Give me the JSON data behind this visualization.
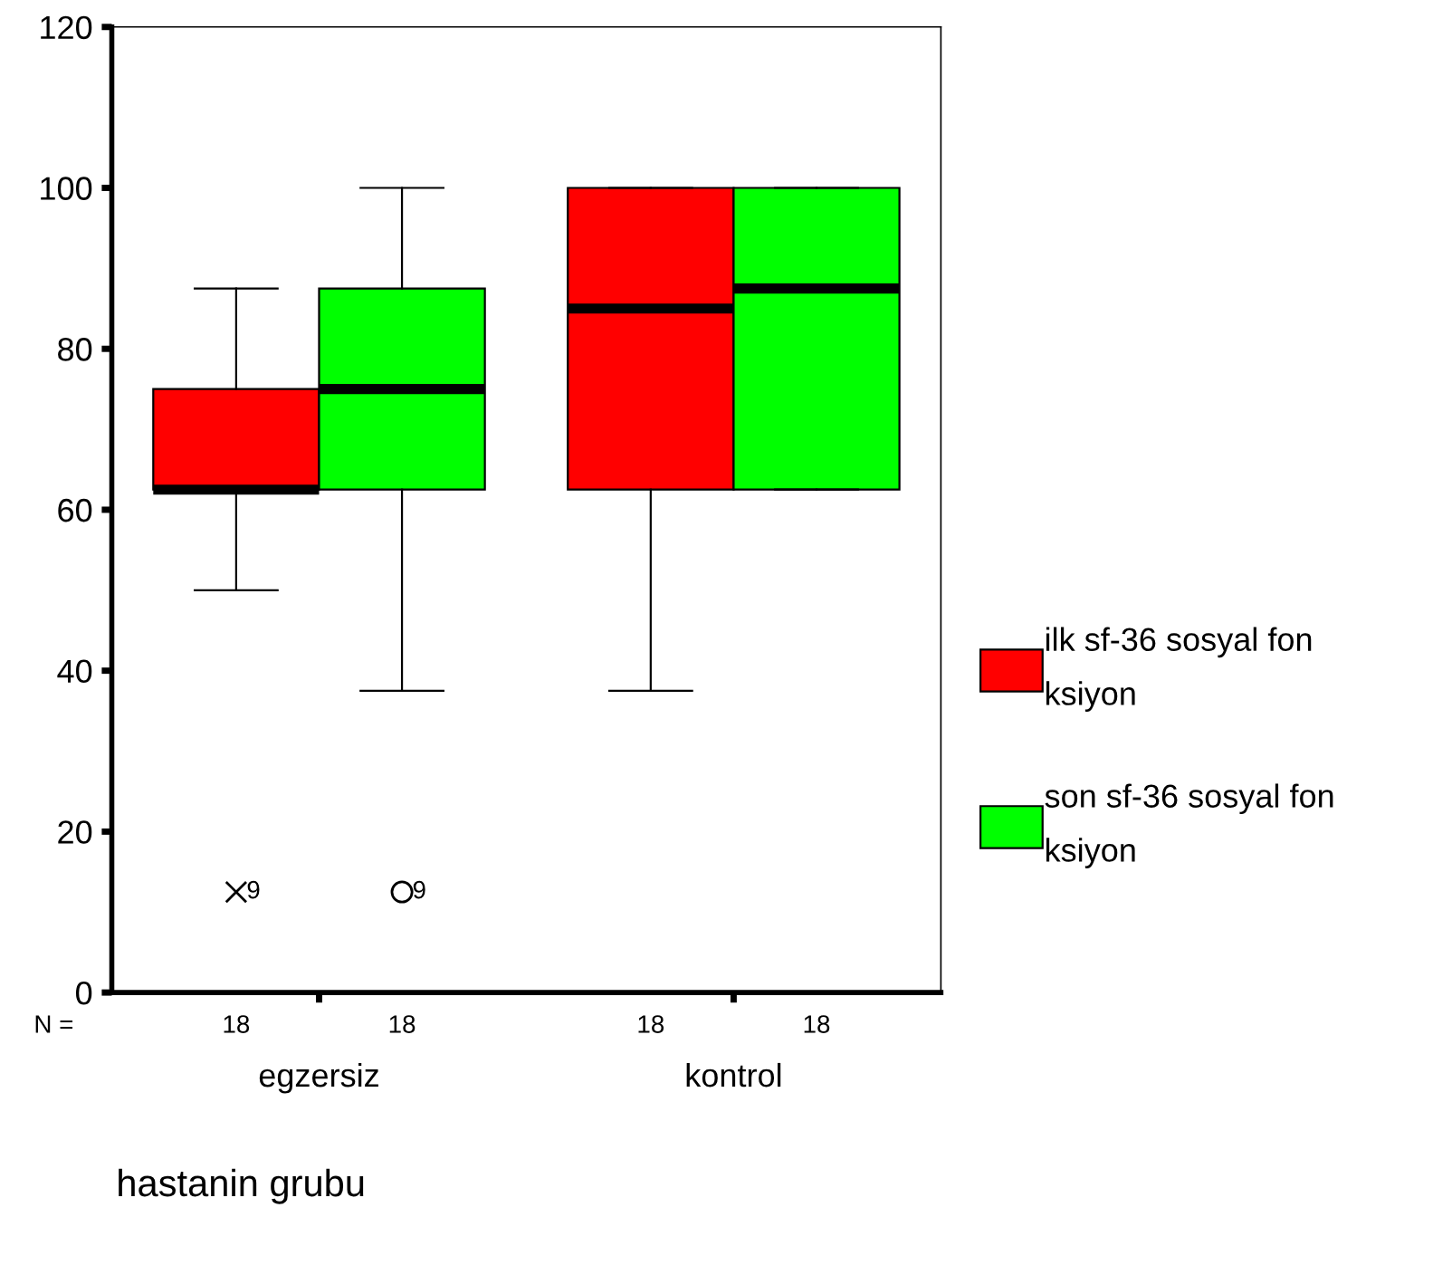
{
  "chart_data": {
    "type": "box",
    "xlabel": "hastanin grubu",
    "categories": [
      "egzersiz",
      "kontrol"
    ],
    "ylim": [
      0,
      120
    ],
    "yticks": [
      0,
      20,
      40,
      60,
      80,
      100,
      120
    ],
    "grid": false,
    "legend": "right",
    "series": [
      {
        "name": "ilk sf-36 sosyal fon\nksiyon",
        "color": "#ff0000",
        "marker": "cross",
        "boxes": [
          {
            "low": 50,
            "q1": 62.5,
            "median": 62.5,
            "q3": 75,
            "high": 87.5,
            "outliers": [
              12.5
            ]
          },
          {
            "low": 37.5,
            "q1": 62.5,
            "median": 85,
            "q3": 100,
            "high": 100
          }
        ]
      },
      {
        "name": "son sf-36 sosyal fon\nksiyon",
        "color": "#00ff00",
        "marker": "circle",
        "boxes": [
          {
            "low": 37.5,
            "q1": 62.5,
            "median": 75,
            "q3": 87.5,
            "high": 100,
            "outliers": [
              12.5
            ]
          },
          {
            "low": 62.5,
            "q1": 62.5,
            "median": 87.5,
            "q3": 100,
            "high": 100
          }
        ]
      }
    ],
    "annotations": [
      "9",
      "9",
      "N =",
      "18",
      "18",
      "18",
      "18"
    ]
  }
}
